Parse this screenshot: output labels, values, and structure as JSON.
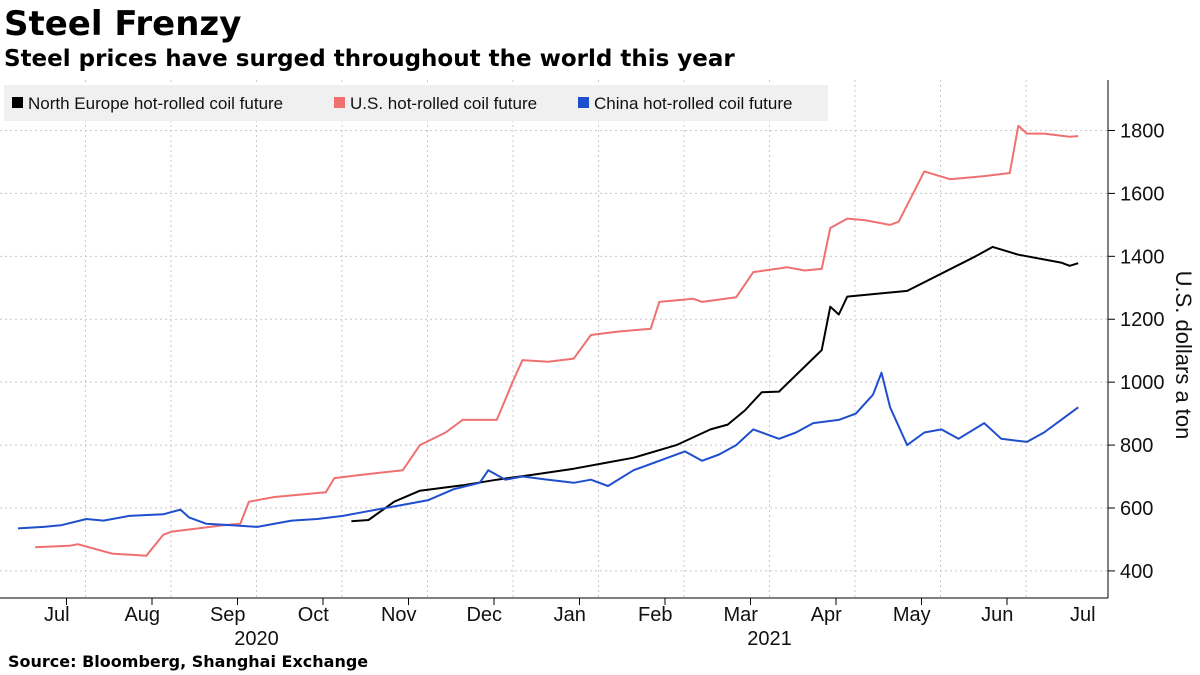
{
  "title": "Steel Frenzy",
  "subtitle": "Steel prices have surged throughout the world this year",
  "source": "Source: Bloomberg, Shanghai Exchange",
  "colors": {
    "north_europe": "#000000",
    "us": "#f07070",
    "china": "#1f4fcc",
    "grid": "#c8c8c8",
    "legend_bg": "#f0f0f0"
  },
  "chart_data": {
    "type": "line",
    "title": "Steel Frenzy",
    "subtitle": "Steel prices have surged throughout the world this year",
    "xlabel": "",
    "ylabel": "U.S. dollars a ton",
    "ylim": [
      340,
      1950
    ],
    "yticks": [
      400,
      600,
      800,
      1000,
      1200,
      1400,
      1600,
      1800
    ],
    "xlim": [
      0,
      12.9
    ],
    "x_unit": "months since 1 Jul 2020",
    "month_labels": [
      "Jul",
      "Aug",
      "Sep",
      "Oct",
      "Nov",
      "Dec",
      "Jan",
      "Feb",
      "Mar",
      "Apr",
      "May",
      "Jun",
      "Jul"
    ],
    "year_labels": [
      {
        "label": "2020",
        "at": 3
      },
      {
        "label": "2021",
        "at": 9
      }
    ],
    "grid": true,
    "legend_position": "top-left",
    "series": [
      {
        "name": "North Europe hot-rolled coil future",
        "color": "#000000",
        "x": [
          3.9,
          4.1,
          4.4,
          4.7,
          5.2,
          5.6,
          6.0,
          6.5,
          6.8,
          7.2,
          7.7,
          8.1,
          8.3,
          8.5,
          8.7,
          8.9,
          9.4,
          9.5,
          9.6,
          9.7,
          10.4,
          11.2,
          11.4,
          11.7,
          12.2,
          12.3,
          12.4
        ],
        "values": [
          558,
          562,
          620,
          655,
          672,
          690,
          705,
          725,
          740,
          760,
          800,
          850,
          865,
          910,
          968,
          970,
          1102,
          1240,
          1215,
          1272,
          1290,
          1400,
          1430,
          1405,
          1380,
          1370,
          1378
        ]
      },
      {
        "name": "U.S. hot-rolled coil future",
        "color": "#f07070",
        "x": [
          0.2,
          0.6,
          0.7,
          1.1,
          1.5,
          1.7,
          1.8,
          2.4,
          2.6,
          2.7,
          3.0,
          3.6,
          3.7,
          4.0,
          4.5,
          4.7,
          5.0,
          5.2,
          5.6,
          5.8,
          5.9,
          6.2,
          6.5,
          6.7,
          7.0,
          7.4,
          7.5,
          7.9,
          8.0,
          8.4,
          8.6,
          9.0,
          9.2,
          9.4,
          9.5,
          9.7,
          9.9,
          10.2,
          10.3,
          10.6,
          10.9,
          11.3,
          11.6,
          11.7,
          11.8,
          12.0,
          12.3,
          12.4
        ],
        "values": [
          475,
          480,
          485,
          455,
          448,
          515,
          525,
          545,
          550,
          620,
          635,
          650,
          695,
          705,
          720,
          800,
          840,
          880,
          880,
          1010,
          1070,
          1065,
          1075,
          1150,
          1160,
          1170,
          1255,
          1265,
          1255,
          1270,
          1350,
          1365,
          1355,
          1360,
          1490,
          1520,
          1515,
          1500,
          1510,
          1670,
          1645,
          1655,
          1665,
          1815,
          1790,
          1790,
          1780,
          1782
        ]
      },
      {
        "name": "China hot-rolled coil future",
        "color": "#1f4fcc",
        "x": [
          0.0,
          0.3,
          0.5,
          0.8,
          1.0,
          1.3,
          1.7,
          1.9,
          2.0,
          2.2,
          2.5,
          2.8,
          3.2,
          3.5,
          3.8,
          4.0,
          4.3,
          4.5,
          4.8,
          5.1,
          5.4,
          5.5,
          5.7,
          5.9,
          6.2,
          6.5,
          6.7,
          6.9,
          7.2,
          7.4,
          7.6,
          7.8,
          8.0,
          8.2,
          8.4,
          8.6,
          8.9,
          9.1,
          9.3,
          9.6,
          9.8,
          10.0,
          10.1,
          10.2,
          10.4,
          10.6,
          10.8,
          11.0,
          11.3,
          11.5,
          11.8,
          12.0,
          12.2,
          12.4
        ],
        "values": [
          535,
          540,
          545,
          565,
          560,
          575,
          580,
          595,
          570,
          550,
          545,
          540,
          560,
          565,
          575,
          585,
          600,
          610,
          625,
          660,
          680,
          720,
          690,
          700,
          690,
          680,
          690,
          670,
          720,
          740,
          760,
          780,
          750,
          770,
          800,
          850,
          820,
          840,
          870,
          880,
          900,
          960,
          1030,
          920,
          800,
          840,
          850,
          820,
          870,
          820,
          810,
          840,
          880,
          920
        ]
      }
    ]
  }
}
